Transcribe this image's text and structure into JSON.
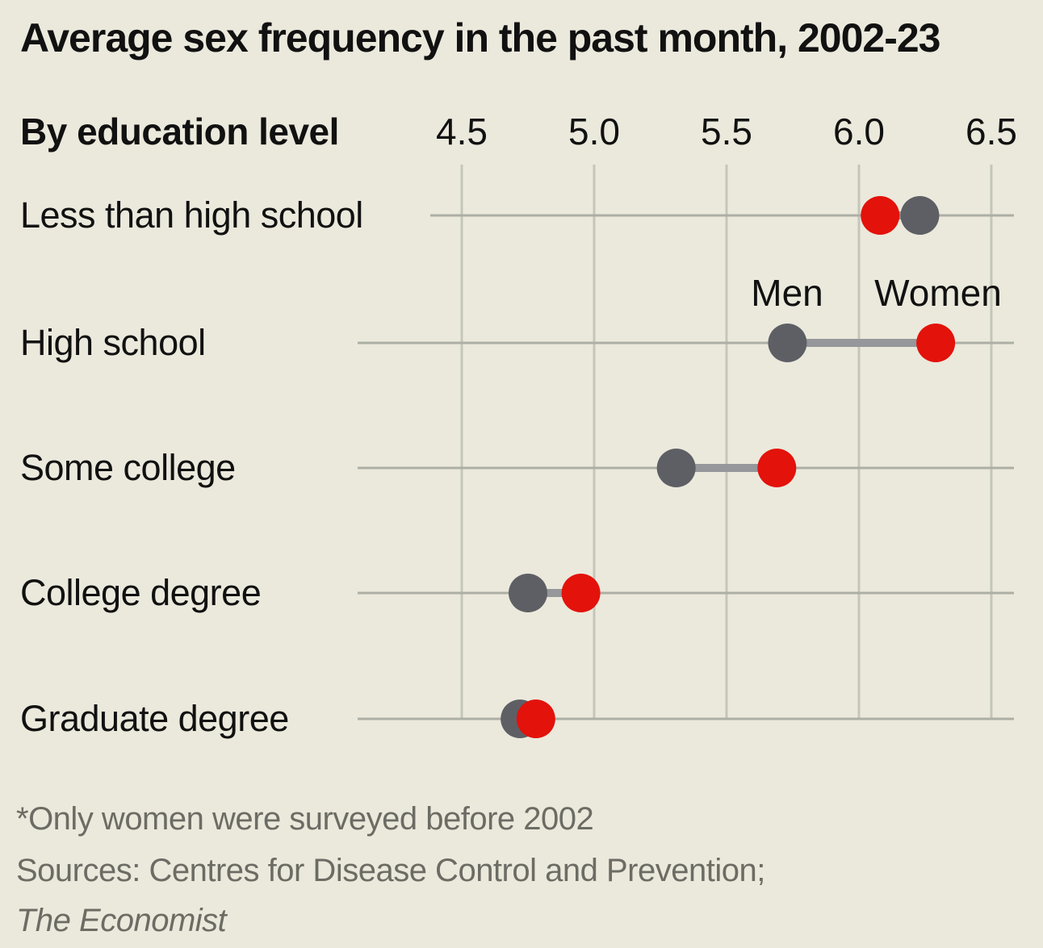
{
  "header": {
    "title": "Average sex frequency in the past month, 2002-23",
    "subtitle": "By education level"
  },
  "legend": {
    "men": "Men",
    "women": "Women"
  },
  "footer": {
    "note": "*Only women were surveyed before 2002",
    "sources": "Sources: Centres for Disease Control and Prevention;",
    "credit": "The Economist"
  },
  "colors": {
    "background": "#EBE9DC",
    "ink": "#111111",
    "muted": "#6C6C64",
    "men_dot": "#5E5F64",
    "women_dot": "#E3120B",
    "connector": "#95979A",
    "row_line": "#ADAFA5",
    "grid_line": "#C4C6BA"
  },
  "chart_data": {
    "type": "dumbbell",
    "title": "Average sex frequency in the past month, 2002-23",
    "subtitle": "By education level",
    "categories": [
      "Less than high school",
      "High school",
      "Some college",
      "College degree",
      "Graduate degree"
    ],
    "series": [
      {
        "name": "Men",
        "color": "#5E5F64",
        "values": [
          6.23,
          5.73,
          5.31,
          4.75,
          4.72
        ]
      },
      {
        "name": "Women",
        "color": "#E3120B",
        "values": [
          6.08,
          6.29,
          5.69,
          4.95,
          4.78
        ]
      }
    ],
    "x_ticks": [
      4.5,
      5.0,
      5.5,
      6.0,
      6.5
    ],
    "x_tick_labels": [
      "4.5",
      "5.0",
      "5.5",
      "6.0",
      "6.5"
    ],
    "xlim": [
      4.5,
      6.5
    ],
    "grid": true,
    "legend_position": "inline-above-high-school-row",
    "xlabel": "",
    "ylabel": ""
  }
}
